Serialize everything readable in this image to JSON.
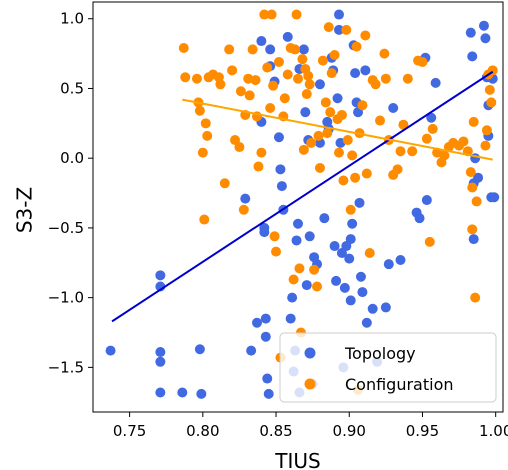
{
  "chart_data": {
    "type": "scatter",
    "title": "",
    "xlabel": "TIUS",
    "ylabel": "S3-Z",
    "xlim": [
      0.725,
      1.005
    ],
    "ylim": [
      -1.82,
      1.12
    ],
    "xticks": [
      "0.75",
      "0.80",
      "0.85",
      "0.90",
      "0.95",
      "1.00"
    ],
    "yticks": [
      "−1.5",
      "−1.0",
      "−0.5",
      "0.0",
      "0.5",
      "1.0"
    ],
    "grid": false,
    "legend_position": "bottom-right",
    "series": [
      {
        "name": "Topology",
        "color": "#4169e1",
        "points": [
          [
            0.737,
            -1.38
          ],
          [
            0.771,
            -0.84
          ],
          [
            0.771,
            -0.92
          ],
          [
            0.771,
            -1.39
          ],
          [
            0.771,
            -1.46
          ],
          [
            0.771,
            -1.68
          ],
          [
            0.786,
            -1.68
          ],
          [
            0.798,
            -1.37
          ],
          [
            0.799,
            -1.69
          ],
          [
            0.829,
            -0.29
          ],
          [
            0.833,
            -1.38
          ],
          [
            0.837,
            -1.18
          ],
          [
            0.84,
            0.84
          ],
          [
            0.84,
            0.26
          ],
          [
            0.842,
            -0.5
          ],
          [
            0.842,
            -0.53
          ],
          [
            0.843,
            -1.15
          ],
          [
            0.843,
            -1.28
          ],
          [
            0.844,
            -1.58
          ],
          [
            0.845,
            -1.69
          ],
          [
            0.846,
            0.78
          ],
          [
            0.846,
            0.66
          ],
          [
            0.849,
            0.55
          ],
          [
            0.852,
            0.15
          ],
          [
            0.853,
            -0.08
          ],
          [
            0.854,
            -0.2
          ],
          [
            0.855,
            -0.37
          ],
          [
            0.858,
            0.87
          ],
          [
            0.86,
            -1.15
          ],
          [
            0.861,
            -1.0
          ],
          [
            0.862,
            -1.53
          ],
          [
            0.863,
            -1.38
          ],
          [
            0.864,
            -0.59
          ],
          [
            0.865,
            -0.47
          ],
          [
            0.866,
            -1.68
          ],
          [
            0.866,
            0.64
          ],
          [
            0.869,
            0.78
          ],
          [
            0.87,
            0.33
          ],
          [
            0.871,
            -0.91
          ],
          [
            0.872,
            0.13
          ],
          [
            0.873,
            -0.56
          ],
          [
            0.875,
            -1.62
          ],
          [
            0.876,
            -0.71
          ],
          [
            0.878,
            -0.76
          ],
          [
            0.88,
            0.53
          ],
          [
            0.88,
            0.11
          ],
          [
            0.883,
            -0.43
          ],
          [
            0.885,
            0.26
          ],
          [
            0.886,
            0.21
          ],
          [
            0.888,
            0.72
          ],
          [
            0.889,
            0.63
          ],
          [
            0.89,
            -0.63
          ],
          [
            0.891,
            -0.88
          ],
          [
            0.892,
            0.43
          ],
          [
            0.893,
            1.03
          ],
          [
            0.893,
            0.92
          ],
          [
            0.894,
            0.11
          ],
          [
            0.895,
            -0.68
          ],
          [
            0.896,
            -1.5
          ],
          [
            0.897,
            -0.93
          ],
          [
            0.898,
            -0.63
          ],
          [
            0.9,
            -0.72
          ],
          [
            0.901,
            -0.58
          ],
          [
            0.901,
            -1.02
          ],
          [
            0.902,
            -0.47
          ],
          [
            0.903,
            0.81
          ],
          [
            0.904,
            0.61
          ],
          [
            0.905,
            0.4
          ],
          [
            0.906,
            0.33
          ],
          [
            0.907,
            -0.32
          ],
          [
            0.908,
            -0.85
          ],
          [
            0.909,
            -0.96
          ],
          [
            0.911,
            0.63
          ],
          [
            0.912,
            -1.18
          ],
          [
            0.916,
            -1.08
          ],
          [
            0.919,
            -1.46
          ],
          [
            0.925,
            -1.07
          ],
          [
            0.927,
            -0.76
          ],
          [
            0.93,
            0.36
          ],
          [
            0.935,
            -0.73
          ],
          [
            0.946,
            -0.39
          ],
          [
            0.948,
            -0.43
          ],
          [
            0.952,
            0.72
          ],
          [
            0.953,
            -0.3
          ],
          [
            0.956,
            0.29
          ],
          [
            0.959,
            0.54
          ],
          [
            0.983,
            0.9
          ],
          [
            0.984,
            0.73
          ],
          [
            0.985,
            -0.18
          ],
          [
            0.985,
            -0.58
          ],
          [
            0.986,
            0.0
          ],
          [
            0.988,
            -0.14
          ],
          [
            0.992,
            0.95
          ],
          [
            0.993,
            0.86
          ],
          [
            0.994,
            0.58
          ],
          [
            0.995,
            0.38
          ],
          [
            0.995,
            0.16
          ],
          [
            0.997,
            -0.28
          ],
          [
            0.998,
            0.57
          ],
          [
            0.999,
            -0.28
          ]
        ]
      },
      {
        "name": "Configuration",
        "color": "#ff8c00",
        "points": [
          [
            0.787,
            0.79
          ],
          [
            0.788,
            0.58
          ],
          [
            0.796,
            0.57
          ],
          [
            0.797,
            0.4
          ],
          [
            0.798,
            0.34
          ],
          [
            0.8,
            0.04
          ],
          [
            0.801,
            -0.44
          ],
          [
            0.802,
            0.25
          ],
          [
            0.803,
            0.16
          ],
          [
            0.804,
            0.58
          ],
          [
            0.807,
            0.6
          ],
          [
            0.811,
            0.58
          ],
          [
            0.812,
            0.53
          ],
          [
            0.815,
            -0.18
          ],
          [
            0.818,
            0.78
          ],
          [
            0.82,
            0.63
          ],
          [
            0.822,
            0.13
          ],
          [
            0.825,
            0.08
          ],
          [
            0.826,
            0.48
          ],
          [
            0.828,
            -0.37
          ],
          [
            0.829,
            0.31
          ],
          [
            0.831,
            0.57
          ],
          [
            0.832,
            0.45
          ],
          [
            0.834,
            0.78
          ],
          [
            0.836,
            0.56
          ],
          [
            0.837,
            0.3
          ],
          [
            0.838,
            -0.06
          ],
          [
            0.84,
            0.04
          ],
          [
            0.842,
            1.03
          ],
          [
            0.844,
            0.65
          ],
          [
            0.846,
            0.36
          ],
          [
            0.847,
            1.03
          ],
          [
            0.848,
            0.52
          ],
          [
            0.849,
            -0.56
          ],
          [
            0.85,
            -0.67
          ],
          [
            0.852,
            0.69
          ],
          [
            0.853,
            -1.43
          ],
          [
            0.855,
            0.3
          ],
          [
            0.856,
            0.43
          ],
          [
            0.858,
            0.6
          ],
          [
            0.86,
            0.79
          ],
          [
            0.862,
            -0.87
          ],
          [
            0.863,
            0.78
          ],
          [
            0.864,
            1.03
          ],
          [
            0.865,
            0.57
          ],
          [
            0.866,
            -0.79
          ],
          [
            0.867,
            -1.25
          ],
          [
            0.868,
            0.71
          ],
          [
            0.869,
            0.06
          ],
          [
            0.87,
            0.64
          ],
          [
            0.871,
            0.46
          ],
          [
            0.872,
            0.59
          ],
          [
            0.873,
            0.53
          ],
          [
            0.874,
            0.11
          ],
          [
            0.876,
            -0.8
          ],
          [
            0.878,
            -0.92
          ],
          [
            0.879,
            0.16
          ],
          [
            0.88,
            -0.07
          ],
          [
            0.882,
            0.7
          ],
          [
            0.884,
            0.4
          ],
          [
            0.885,
            0.18
          ],
          [
            0.886,
            0.94
          ],
          [
            0.887,
            0.33
          ],
          [
            0.888,
            0.61
          ],
          [
            0.89,
            0.74
          ],
          [
            0.892,
            0.28
          ],
          [
            0.893,
            0.04
          ],
          [
            0.895,
            0.31
          ],
          [
            0.896,
            -0.16
          ],
          [
            0.898,
            0.92
          ],
          [
            0.899,
            0.13
          ],
          [
            0.901,
            -0.37
          ],
          [
            0.902,
            0.02
          ],
          [
            0.904,
            -0.14
          ],
          [
            0.905,
            0.8
          ],
          [
            0.906,
            -1.66
          ],
          [
            0.907,
            0.18
          ],
          [
            0.909,
            0.38
          ],
          [
            0.911,
            0.88
          ],
          [
            0.912,
            -0.11
          ],
          [
            0.914,
            -0.68
          ],
          [
            0.916,
            0.56
          ],
          [
            0.918,
            0.53
          ],
          [
            0.921,
            0.27
          ],
          [
            0.924,
            0.75
          ],
          [
            0.925,
            0.57
          ],
          [
            0.927,
            0.13
          ],
          [
            0.93,
            -0.12
          ],
          [
            0.933,
            -0.08
          ],
          [
            0.935,
            0.05
          ],
          [
            0.937,
            0.24
          ],
          [
            0.94,
            0.57
          ],
          [
            0.943,
            0.05
          ],
          [
            0.947,
            0.7
          ],
          [
            0.95,
            0.69
          ],
          [
            0.953,
            0.14
          ],
          [
            0.955,
            -0.6
          ],
          [
            0.957,
            0.21
          ],
          [
            0.96,
            0.04
          ],
          [
            0.963,
            -0.03
          ],
          [
            0.965,
            0.02
          ],
          [
            0.968,
            0.08
          ],
          [
            0.971,
            0.11
          ],
          [
            0.975,
            0.09
          ],
          [
            0.978,
            0.12
          ],
          [
            0.981,
            0.05
          ],
          [
            0.983,
            -0.1
          ],
          [
            0.984,
            -0.21
          ],
          [
            0.984,
            -0.51
          ],
          [
            0.985,
            0.26
          ],
          [
            0.986,
            -1.0
          ],
          [
            0.987,
            -0.31
          ],
          [
            0.993,
            0.09
          ],
          [
            0.994,
            0.2
          ],
          [
            0.995,
            0.6
          ],
          [
            0.996,
            0.49
          ],
          [
            0.997,
            0.4
          ],
          [
            0.998,
            0.63
          ]
        ]
      }
    ],
    "trend_lines": [
      {
        "series": "Topology",
        "color": "#0000cd",
        "x": [
          0.738,
          0.998
        ],
        "y": [
          -1.17,
          0.62
        ]
      },
      {
        "series": "Configuration",
        "color": "#ffa500",
        "x": [
          0.786,
          0.998
        ],
        "y": [
          0.42,
          -0.01
        ]
      }
    ]
  }
}
